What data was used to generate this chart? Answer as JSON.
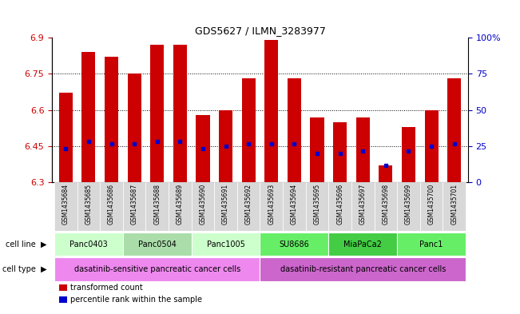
{
  "title": "GDS5627 / ILMN_3283977",
  "samples": [
    "GSM1435684",
    "GSM1435685",
    "GSM1435686",
    "GSM1435687",
    "GSM1435688",
    "GSM1435689",
    "GSM1435690",
    "GSM1435691",
    "GSM1435692",
    "GSM1435693",
    "GSM1435694",
    "GSM1435695",
    "GSM1435696",
    "GSM1435697",
    "GSM1435698",
    "GSM1435699",
    "GSM1435700",
    "GSM1435701"
  ],
  "bar_heights": [
    6.67,
    6.84,
    6.82,
    6.75,
    6.87,
    6.87,
    6.58,
    6.6,
    6.73,
    6.89,
    6.73,
    6.57,
    6.55,
    6.57,
    6.37,
    6.53,
    6.6,
    6.73
  ],
  "blue_markers": [
    6.44,
    6.47,
    6.46,
    6.46,
    6.47,
    6.47,
    6.44,
    6.45,
    6.46,
    6.46,
    6.46,
    6.42,
    6.42,
    6.43,
    6.37,
    6.43,
    6.45,
    6.46
  ],
  "ymin": 6.3,
  "ymax": 6.9,
  "yticks": [
    6.3,
    6.45,
    6.6,
    6.75,
    6.9
  ],
  "ytick_labels": [
    "6.3",
    "6.45",
    "6.6",
    "6.75",
    "6.9"
  ],
  "right_yticks": [
    0,
    25,
    50,
    75,
    100
  ],
  "right_ytick_labels": [
    "0",
    "25",
    "50",
    "75",
    "100%"
  ],
  "bar_color": "#cc0000",
  "blue_color": "#0000cc",
  "cell_lines": [
    {
      "label": "Panc0403",
      "start": 0,
      "end": 3,
      "color": "#ccffcc"
    },
    {
      "label": "Panc0504",
      "start": 3,
      "end": 6,
      "color": "#aaddaa"
    },
    {
      "label": "Panc1005",
      "start": 6,
      "end": 9,
      "color": "#ccffcc"
    },
    {
      "label": "SU8686",
      "start": 9,
      "end": 12,
      "color": "#66ee66"
    },
    {
      "label": "MiaPaCa2",
      "start": 12,
      "end": 15,
      "color": "#44cc44"
    },
    {
      "label": "Panc1",
      "start": 15,
      "end": 18,
      "color": "#66ee66"
    }
  ],
  "cell_types": [
    {
      "label": "dasatinib-sensitive pancreatic cancer cells",
      "start": 0,
      "end": 9,
      "color": "#ee88ee"
    },
    {
      "label": "dasatinib-resistant pancreatic cancer cells",
      "start": 9,
      "end": 18,
      "color": "#cc66cc"
    }
  ],
  "legend_bar_label": "transformed count",
  "legend_marker_label": "percentile rank within the sample",
  "axis_color_left": "#cc0000",
  "axis_color_right": "#0000cc",
  "grid_color": "black",
  "grid_style": "dotted",
  "grid_values": [
    6.45,
    6.6,
    6.75
  ],
  "bg_color": "#f0f0f0",
  "plot_bg": "#ffffff"
}
